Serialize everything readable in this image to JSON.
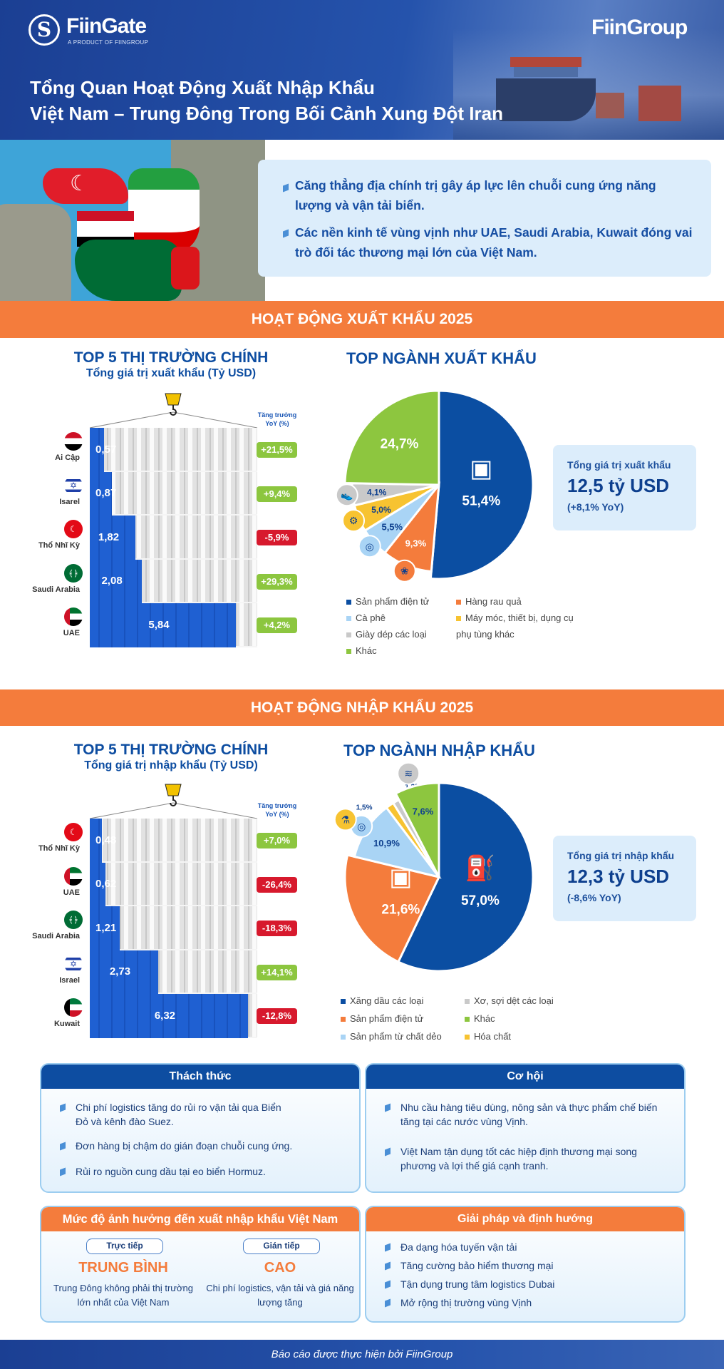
{
  "header": {
    "brand_left": "FiinGate",
    "brand_left_sub": "A PRODUCT OF FIINGROUP",
    "brand_right": "FiinGroup",
    "title_line1": "Tổng Quan Hoạt Động Xuất Nhập Khẩu",
    "title_line2": "Việt Nam – Trung Đông Trong Bối Cảnh Xung Đột Iran"
  },
  "intro": {
    "points": [
      "Căng thẳng địa chính trị gây áp lực lên chuỗi cung ứng năng lượng và vận tải biển.",
      "Các nền kinh tế vùng vịnh như UAE, Saudi Arabia, Kuwait đóng vai trò đối tác thương mại lớn của Việt Nam."
    ]
  },
  "export": {
    "banner": "HOẠT ĐỘNG XUẤT KHẨU 2025",
    "markets_title": "TOP 5 THỊ TRƯỜNG CHÍNH",
    "markets_subtitle": "Tổng giá trị xuất khẩu (Tỷ USD)",
    "yoy_header": "Tăng trưởng YoY (%)",
    "sectors_title": "TOP NGÀNH XUẤT KHẨU",
    "total_label": "Tổng giá trị xuất khẩu",
    "total_value": "12,5 tỷ USD",
    "total_yoy": "(+8,1% YoY)"
  },
  "import": {
    "banner": "HOẠT ĐỘNG NHẬP KHẨU 2025",
    "markets_title": "TOP 5 THỊ TRƯỜNG CHÍNH",
    "markets_subtitle": "Tổng giá trị nhập khẩu (Tỷ USD)",
    "yoy_header": "Tăng trưởng YoY (%)",
    "sectors_title": "TOP NGÀNH NHẬP KHẨU",
    "total_label": "Tổng giá trị nhập khẩu",
    "total_value": "12,3 tỷ USD",
    "total_yoy": "(-8,6% YoY)"
  },
  "colors": {
    "blue": "#0b4ea2",
    "orange": "#f47c3c",
    "lightblue": "#a9d4f5",
    "yellow": "#f7c331",
    "gray": "#c9c9c9",
    "green": "#8dc63f",
    "pos": "#8cc63f",
    "neg": "#d7192d",
    "bar": "#1f60d2"
  },
  "chart_data": [
    {
      "type": "bar",
      "title": "TOP 5 THỊ TRƯỜNG CHÍNH – Tổng giá trị xuất khẩu (Tỷ USD)",
      "orientation": "horizontal",
      "categories": [
        "Ai Cập",
        "Isarel",
        "Thổ Nhĩ Kỳ",
        "Saudi Arabia",
        "UAE"
      ],
      "flags": [
        "egypt",
        "israel",
        "turkey",
        "saudi",
        "uae"
      ],
      "values": [
        0.57,
        0.87,
        1.82,
        2.08,
        5.84
      ],
      "labels": [
        "0,57",
        "0,87",
        "1,82",
        "2,08",
        "5,84"
      ],
      "yoy": [
        21.5,
        9.4,
        -5.9,
        29.3,
        4.2
      ],
      "yoy_labels": [
        "+21,5%",
        "+9,4%",
        "-5,9%",
        "+29,3%",
        "+4,2%"
      ]
    },
    {
      "type": "pie",
      "title": "TOP NGÀNH XUẤT KHẨU",
      "categories": [
        "Sản phẩm điện tử",
        "Hàng rau quả",
        "Cà phê",
        "Máy móc, thiết bị, dụng cụ phụ tùng khác",
        "Giày dép các loại",
        "Khác"
      ],
      "values": [
        51.4,
        9.3,
        5.5,
        5.0,
        4.1,
        24.7
      ],
      "labels": [
        "51,4%",
        "9,3%",
        "5,5%",
        "5,0%",
        "4,1%",
        "24,7%"
      ],
      "colors": [
        "#0b4ea2",
        "#f47c3c",
        "#a9d4f5",
        "#f7c331",
        "#c9c9c9",
        "#8dc63f"
      ],
      "icons": [
        "devices-icon",
        "vegetables-icon",
        "coffee-icon",
        "gears-icon",
        "shoe-icon",
        ""
      ],
      "legend_order": [
        0,
        1,
        2,
        3,
        4,
        5
      ]
    },
    {
      "type": "bar",
      "title": "TOP 5 THỊ TRƯỜNG CHÍNH – Tổng giá trị nhập khẩu (Tỷ USD)",
      "orientation": "horizontal",
      "categories": [
        "Thổ Nhĩ Kỳ",
        "UAE",
        "Saudi Arabia",
        "Israel",
        "Kuwait"
      ],
      "flags": [
        "turkey",
        "uae",
        "saudi",
        "israel",
        "kuwait"
      ],
      "values": [
        0.48,
        0.62,
        1.21,
        2.73,
        6.32
      ],
      "labels": [
        "0,48",
        "0,62",
        "1,21",
        "2,73",
        "6,32"
      ],
      "yoy": [
        7.0,
        -26.4,
        -18.3,
        14.1,
        -12.8
      ],
      "yoy_labels": [
        "+7,0%",
        "-26,4%",
        "-18,3%",
        "+14,1%",
        "-12,8%"
      ]
    },
    {
      "type": "pie",
      "title": "TOP NGÀNH NHẬP KHẨU",
      "categories": [
        "Xăng dầu các loại",
        "Sản phẩm điện tử",
        "Sản phẩm từ chất dẻo",
        "Hóa chất",
        "Xơ, sợi dệt các loại",
        "Khác"
      ],
      "values": [
        57.0,
        21.6,
        10.9,
        1.5,
        1.2,
        7.6
      ],
      "labels": [
        "57,0%",
        "21,6%",
        "10,9%",
        "1,5%",
        "1,2%",
        "7,6%"
      ],
      "colors": [
        "#0b4ea2",
        "#f47c3c",
        "#a9d4f5",
        "#f7c331",
        "#c9c9c9",
        "#8dc63f"
      ],
      "icons": [
        "fuel-pump-icon",
        "devices-icon",
        "plastic-icon",
        "chemical-icon",
        "yarn-icon",
        ""
      ]
    }
  ],
  "cards": {
    "challenges": {
      "title": "Thách thức",
      "items": [
        "Chi phí logistics tăng do rủi ro vận tải qua Biển Đỏ và kênh đào Suez.",
        "Đơn hàng bị chậm do gián đoạn chuỗi cung ứng.",
        "Rủi ro nguồn cung dầu tại eo biển Hormuz."
      ]
    },
    "opportunities": {
      "title": "Cơ hội",
      "items": [
        "Nhu cầu hàng tiêu dùng, nông sản và thực phẩm chế biến tăng tại các nước vùng Vịnh.",
        "Việt Nam tận dụng tốt các hiệp định thương mại song phương và lợi thế giá cạnh tranh."
      ]
    },
    "impact": {
      "title": "Mức độ ảnh hưởng đến xuất nhập khẩu Việt Nam",
      "direct": {
        "label": "Trực tiếp",
        "level": "TRUNG BÌNH",
        "desc": "Trung Đông không phải thị trường lớn nhất của Việt Nam"
      },
      "indirect": {
        "label": "Gián tiếp",
        "level": "CAO",
        "desc": "Chi phí logistics, vận tải và giá năng lượng tăng"
      }
    },
    "solutions": {
      "title": "Giải pháp và định hướng",
      "items": [
        "Đa dạng hóa tuyến vận tải",
        "Tăng cường bảo hiểm thương mại",
        "Tận dụng trung tâm logistics Dubai",
        "Mở rộng thị trường vùng Vịnh"
      ]
    }
  },
  "footer": {
    "text": "Báo cáo được thực hiện bởi FiinGroup"
  }
}
